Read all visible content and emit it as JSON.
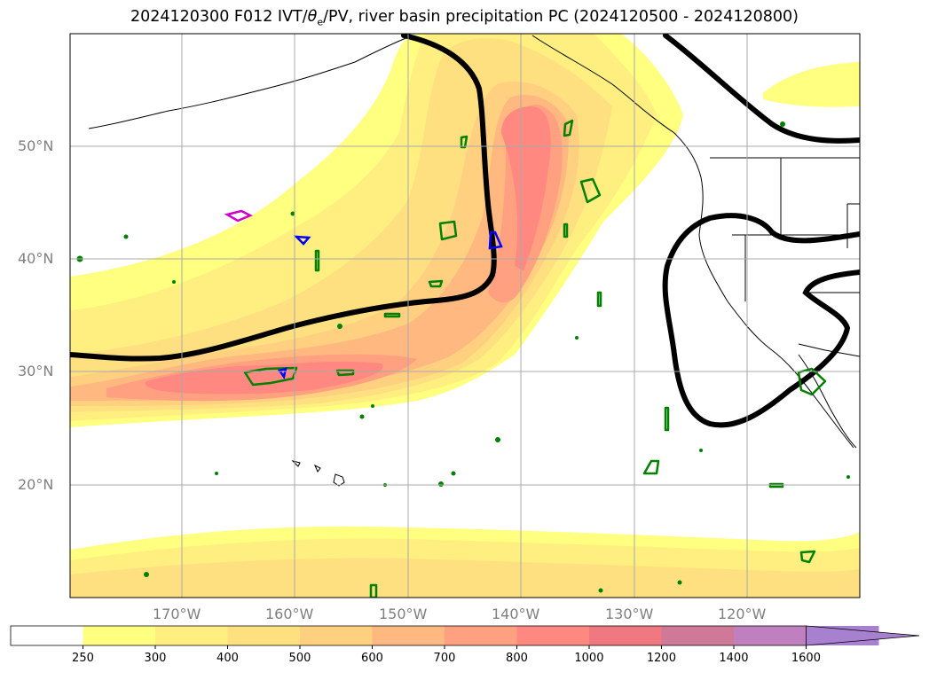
{
  "title": {
    "prefix": "2024120300 F012 IVT/",
    "theta": "θ",
    "theta_sub": "e",
    "suffix": "/PV, river basin precipitation PC (2024120500 - 2024120800)"
  },
  "axes": {
    "lon_labels": [
      "170°W",
      "160°W",
      "150°W",
      "140°W",
      "130°W",
      "120°W"
    ],
    "lat_labels": [
      "50°N",
      "40°N",
      "30°N",
      "20°N"
    ]
  },
  "colorbar": {
    "levels": [
      "250",
      "300",
      "400",
      "500",
      "600",
      "700",
      "800",
      "1000",
      "1200",
      "1400",
      "1600"
    ],
    "colors": [
      "#ffffff",
      "#ffff80",
      "#ffee80",
      "#ffe080",
      "#ffd080",
      "#ffb880",
      "#ffa080",
      "#ff8880",
      "#f07880",
      "#d07898",
      "#c080c0",
      "#a880d0"
    ]
  }
}
